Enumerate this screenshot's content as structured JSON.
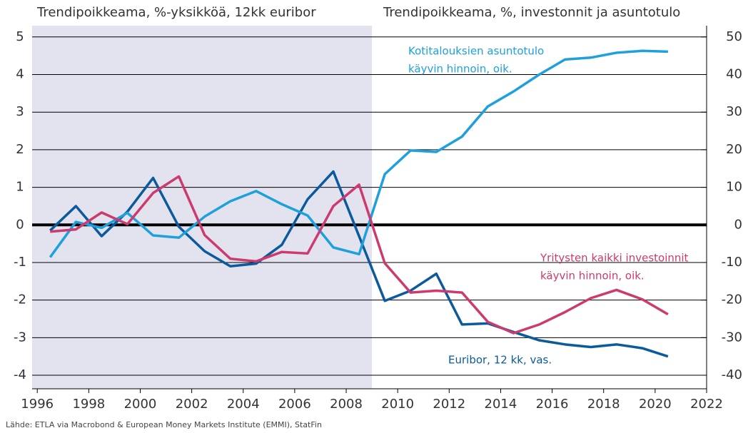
{
  "chart_data": {
    "type": "line",
    "title_left": "Trendipoikkeama, %-yksikköä, 12kk euribor",
    "title_right": "Trendipoikkeama, %, investonnit ja asuntotulo",
    "source": "Lähde: ETLA via Macrobond & European Money Markets Institute (EMMI), StatFin",
    "x": [
      1996.5,
      1997.5,
      1998.5,
      1999.5,
      2000.5,
      2001.5,
      2002.5,
      2003.5,
      2004.5,
      2005.5,
      2006.5,
      2007.5,
      2008.5,
      2009.5,
      2010.5,
      2011.5,
      2012.5,
      2013.5,
      2014.5,
      2015.5,
      2016.5,
      2017.5,
      2018.5,
      2019.5,
      2020.5
    ],
    "series": [
      {
        "label": [
          "Euribor, 12 kk, vas."
        ],
        "color": "#0b5a9c",
        "axis": "y",
        "values": [
          -0.15,
          0.5,
          -0.3,
          0.35,
          1.25,
          -0.05,
          -0.7,
          -1.1,
          -1.03,
          -0.53,
          0.68,
          1.42,
          -0.3,
          -2.02,
          -1.75,
          -1.3,
          -2.65,
          -2.62,
          -2.85,
          -3.07,
          -3.18,
          -3.25,
          -3.18,
          -3.28,
          -3.5
        ]
      },
      {
        "label": [
          "Kotitalouksien asuntotulo",
          "käyvin hinnoin, oik."
        ],
        "color": "#1ea0dc",
        "axis": "y2",
        "values": [
          -8.6,
          0.8,
          -0.8,
          3.2,
          -2.8,
          -3.4,
          2.2,
          6.3,
          9.0,
          5.5,
          2.5,
          -6.0,
          -7.8,
          13.5,
          19.8,
          19.4,
          23.5,
          31.5,
          35.5,
          40.0,
          44.0,
          44.5,
          45.8,
          46.3,
          46.1
        ]
      },
      {
        "label": [
          "Yritysten kaikki investoinnit",
          "käyvin hinnoin, oik."
        ],
        "color": "#cc3a6e",
        "axis": "y2",
        "values": [
          -1.8,
          -1.2,
          3.3,
          0.2,
          8.5,
          12.9,
          -2.7,
          -9.0,
          -9.7,
          -7.2,
          -7.6,
          5.0,
          10.7,
          -10.2,
          -18.0,
          -17.5,
          -18.0,
          -25.8,
          -28.8,
          -26.5,
          -23.2,
          -19.5,
          -17.3,
          -19.8,
          -23.8
        ]
      }
    ],
    "xlim": [
      1995.8,
      2022
    ],
    "xticks": [
      1996,
      1998,
      2000,
      2002,
      2004,
      2006,
      2008,
      2010,
      2012,
      2014,
      2016,
      2018,
      2020,
      2022
    ],
    "ylim": [
      -4.36,
      5.3
    ],
    "yticks": [
      -4,
      -3,
      -2,
      -1,
      0,
      1,
      2,
      3,
      4,
      5
    ],
    "y2lim": [
      -43.6,
      53
    ],
    "y2ticks": [
      -40,
      -30,
      -20,
      -10,
      0,
      10,
      20,
      30,
      40,
      50
    ],
    "grid": true,
    "shade": {
      "x": [
        1995.8,
        2009
      ],
      "color": "#e3e3f0"
    }
  }
}
